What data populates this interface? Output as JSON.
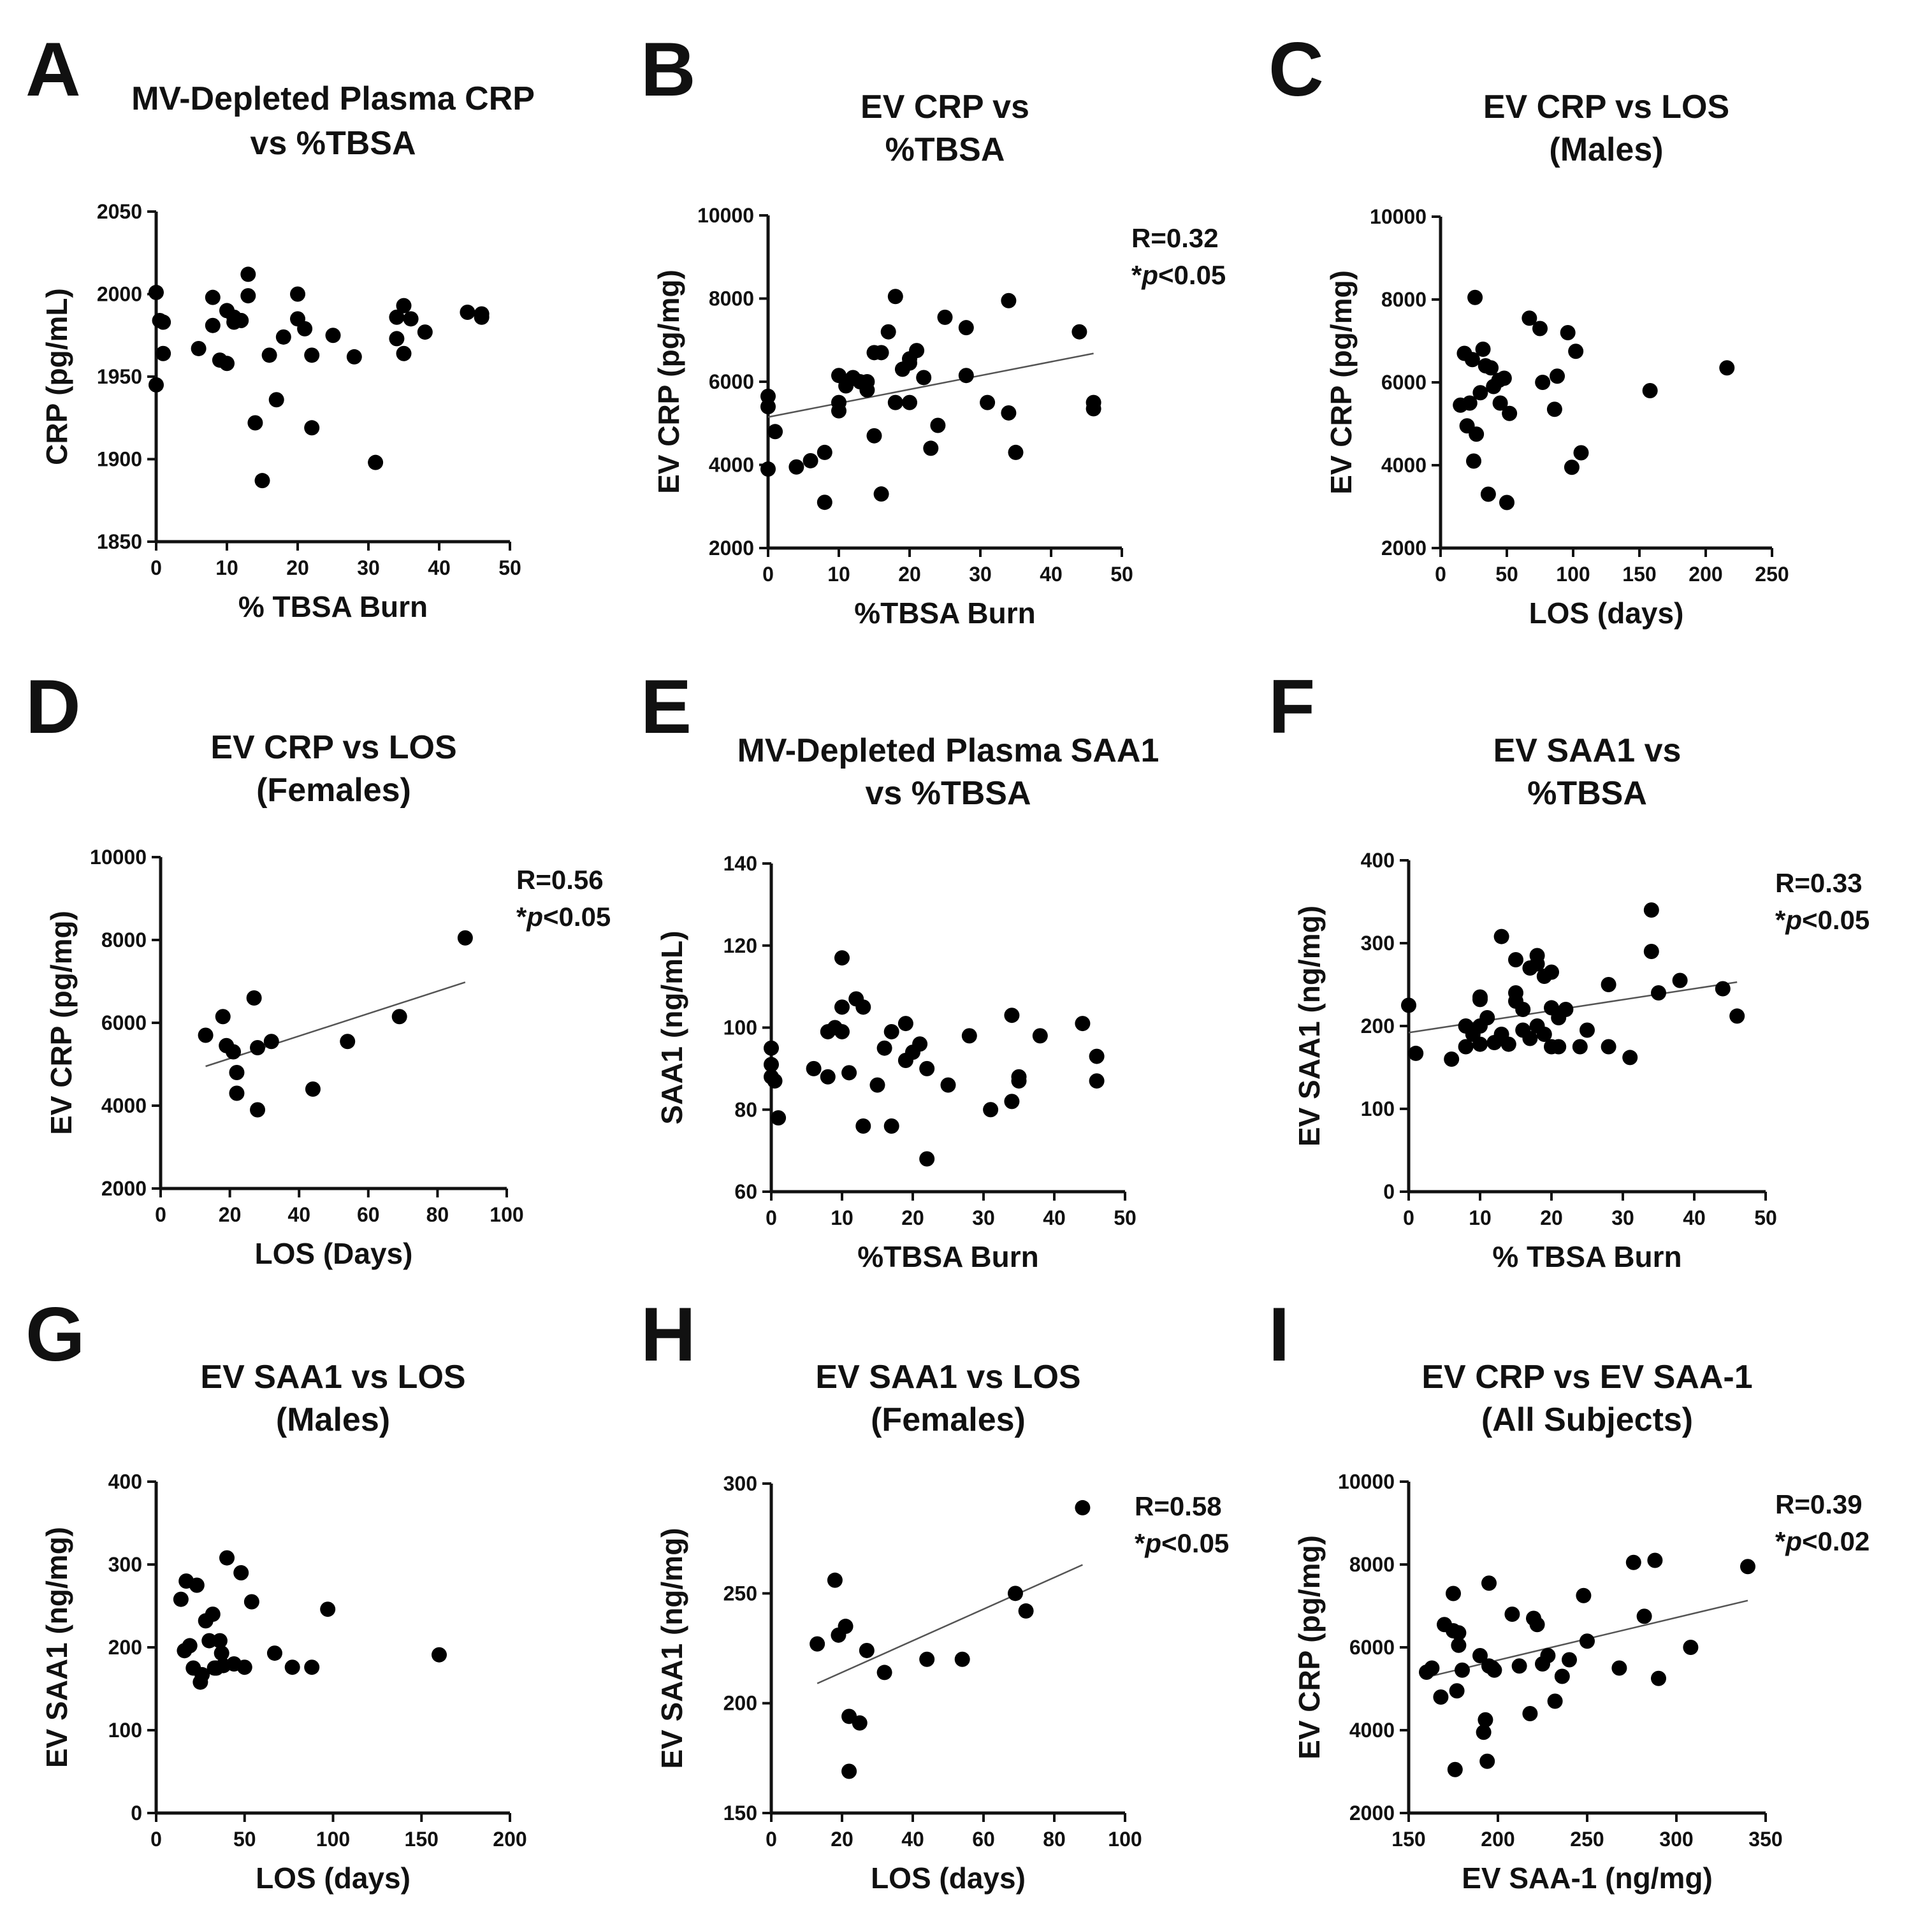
{
  "chart_data": [
    {
      "panel": "A",
      "type": "scatter",
      "title": [
        "MV-Depleted Plasma CRP",
        "vs %TBSA"
      ],
      "xlabel": "% TBSA Burn",
      "ylabel": "CRP (pg/mL)",
      "xlim": [
        0,
        50
      ],
      "ylim": [
        1850,
        2050
      ],
      "xticks": [
        "0",
        "10",
        "20",
        "30",
        "40",
        "50"
      ],
      "yticks": [
        "1850",
        "1900",
        "1950",
        "2000",
        "2050"
      ],
      "annotation": null,
      "x": [
        0,
        0,
        0.5,
        1,
        1,
        6,
        8,
        8,
        9,
        10,
        10,
        11,
        11,
        12,
        13,
        13,
        14,
        15,
        16,
        17,
        18,
        20,
        20,
        21,
        22,
        22,
        25,
        28,
        31,
        34,
        34,
        35,
        35,
        36,
        38,
        44,
        46,
        46
      ],
      "y": [
        2001,
        1945,
        1984,
        1983,
        1964,
        1967,
        1998,
        1981,
        1960,
        1990,
        1958,
        1986,
        1983,
        1984,
        2012,
        1999,
        1922,
        1887,
        1963,
        1936,
        1974,
        2000,
        1985,
        1979,
        1963,
        1919,
        1975,
        1962,
        1898,
        1986,
        1973,
        1993,
        1964,
        1985,
        1977,
        1989,
        1986,
        1988
      ],
      "fit": null
    },
    {
      "panel": "B",
      "type": "scatter",
      "title": [
        "EV CRP vs",
        "%TBSA"
      ],
      "xlabel": "%TBSA Burn",
      "ylabel": "EV CRP (pg/mg)",
      "xlim": [
        0,
        50
      ],
      "ylim": [
        2000,
        10000
      ],
      "xticks": [
        "0",
        "10",
        "20",
        "30",
        "40",
        "50"
      ],
      "yticks": [
        "2000",
        "4000",
        "6000",
        "8000",
        "10000"
      ],
      "annotation": {
        "r": "R=0.32",
        "p_prefix": "*",
        "p_italic": "p",
        "p_suffix": "<0.05"
      },
      "x": [
        0,
        0,
        0,
        1,
        4,
        6,
        8,
        8,
        10,
        10,
        10,
        11,
        12,
        13,
        14,
        14,
        15,
        15,
        16,
        16,
        17,
        18,
        18,
        19,
        20,
        20,
        20,
        21,
        22,
        23,
        24,
        25,
        28,
        28,
        31,
        34,
        34,
        35,
        44,
        46,
        46
      ],
      "y": [
        5650,
        5400,
        3900,
        4800,
        3950,
        4100,
        4300,
        3100,
        6150,
        5500,
        5300,
        5900,
        6100,
        6000,
        5800,
        6000,
        6700,
        4700,
        3300,
        6700,
        7200,
        8050,
        5500,
        6300,
        6550,
        6450,
        5500,
        6750,
        6100,
        4400,
        4950,
        7550,
        7300,
        6150,
        5500,
        7950,
        5250,
        4300,
        7200,
        5500,
        5350
      ],
      "fit": {
        "x": [
          0,
          46
        ],
        "y": [
          5150,
          6680
        ]
      }
    },
    {
      "panel": "C",
      "type": "scatter",
      "title": [
        "EV CRP vs LOS",
        "(Males)"
      ],
      "xlabel": "LOS  (days)",
      "ylabel": "EV CRP (pg/mg)",
      "xlim": [
        0,
        250
      ],
      "ylim": [
        2000,
        10000
      ],
      "xticks": [
        "0",
        "50",
        "100",
        "150",
        "200",
        "250"
      ],
      "yticks": [
        "2000",
        "4000",
        "6000",
        "8000",
        "10000"
      ],
      "annotation": null,
      "x": [
        15,
        18,
        20,
        22,
        24,
        25,
        26,
        27,
        30,
        32,
        34,
        36,
        38,
        40,
        44,
        45,
        48,
        50,
        52,
        67,
        75,
        77,
        86,
        88,
        96,
        99,
        102,
        106,
        158,
        216
      ],
      "y": [
        5450,
        6700,
        4950,
        5500,
        6550,
        4100,
        8050,
        4750,
        5750,
        6800,
        6400,
        3300,
        6350,
        5900,
        6050,
        5500,
        6100,
        3100,
        5250,
        7550,
        7300,
        6000,
        5350,
        6150,
        7200,
        3950,
        6750,
        4300,
        5800,
        6350
      ],
      "fit": null
    },
    {
      "panel": "D",
      "type": "scatter",
      "title": [
        "EV CRP vs LOS",
        "(Females)"
      ],
      "xlabel": "LOS  (Days)",
      "ylabel": "EV CRP (pg/mg)",
      "xlim": [
        0,
        100
      ],
      "ylim": [
        2000,
        10000
      ],
      "xticks": [
        "0",
        "20",
        "40",
        "60",
        "80",
        "100"
      ],
      "yticks": [
        "2000",
        "4000",
        "6000",
        "8000",
        "10000"
      ],
      "annotation": {
        "r": "R=0.56",
        "p_prefix": "*",
        "p_italic": "p",
        "p_suffix": "<0.05"
      },
      "x": [
        13,
        18,
        19,
        21,
        22,
        22,
        27,
        28,
        28,
        32,
        44,
        54,
        69,
        88
      ],
      "y": [
        5700,
        6150,
        5450,
        5300,
        4300,
        4800,
        6600,
        5400,
        3900,
        5550,
        4400,
        5550,
        6150,
        8050
      ],
      "fit": {
        "x": [
          13,
          88
        ],
        "y": [
          4950,
          6980
        ]
      }
    },
    {
      "panel": "E",
      "type": "scatter",
      "title": [
        "MV-Depleted Plasma SAA1",
        "vs %TBSA"
      ],
      "xlabel": "%TBSA Burn",
      "ylabel": "SAA1 (ng/mL)",
      "xlim": [
        0,
        50
      ],
      "ylim": [
        60,
        140
      ],
      "xticks": [
        "0",
        "10",
        "20",
        "30",
        "40",
        "50"
      ],
      "yticks": [
        "60",
        "80",
        "100",
        "120",
        "140"
      ],
      "annotation": null,
      "x": [
        0,
        0,
        0,
        0.5,
        1,
        6,
        8,
        8,
        9,
        10,
        10,
        10,
        11,
        12,
        13,
        13,
        15,
        16,
        17,
        17,
        19,
        19,
        20,
        21,
        22,
        22,
        25,
        28,
        31,
        34,
        34,
        35,
        35,
        38,
        44,
        46,
        46
      ],
      "y": [
        95,
        91,
        88,
        87,
        78,
        90,
        99,
        88,
        100,
        117,
        105,
        99,
        89,
        107,
        105,
        76,
        86,
        95,
        99,
        76,
        92,
        101,
        94,
        96,
        90,
        68,
        86,
        98,
        80,
        103,
        82,
        88,
        87,
        98,
        101,
        93,
        87
      ],
      "fit": null
    },
    {
      "panel": "F",
      "type": "scatter",
      "title": [
        "EV SAA1 vs",
        "%TBSA"
      ],
      "xlabel": "% TBSA Burn",
      "ylabel": "EV SAA1 (ng/mg)",
      "xlim": [
        0,
        50
      ],
      "ylim": [
        0,
        400
      ],
      "xticks": [
        "0",
        "10",
        "20",
        "30",
        "40",
        "50"
      ],
      "yticks": [
        "0",
        "100",
        "200",
        "300",
        "400"
      ],
      "annotation": {
        "r": "R=0.33",
        "p_prefix": "*",
        "p_italic": "p",
        "p_suffix": "<0.05"
      },
      "x": [
        0,
        1,
        6,
        8,
        8,
        9,
        10,
        10,
        10,
        10,
        11,
        12,
        13,
        13,
        14,
        15,
        15,
        15,
        16,
        16,
        17,
        17,
        18,
        18,
        18,
        19,
        19,
        20,
        20,
        20,
        21,
        21,
        22,
        24,
        25,
        28,
        28,
        31,
        34,
        34,
        35,
        38,
        44,
        46
      ],
      "y": [
        225,
        167,
        160,
        200,
        175,
        190,
        232,
        235,
        200,
        178,
        210,
        180,
        308,
        190,
        178,
        240,
        230,
        280,
        195,
        220,
        185,
        270,
        285,
        200,
        275,
        190,
        260,
        222,
        175,
        265,
        175,
        210,
        220,
        175,
        195,
        250,
        175,
        162,
        340,
        290,
        240,
        255,
        245,
        212
      ],
      "fit": {
        "x": [
          0,
          46
        ],
        "y": [
          192,
          253
        ]
      }
    },
    {
      "panel": "G",
      "type": "scatter",
      "title": [
        "EV SAA1 vs LOS",
        "(Males)"
      ],
      "xlabel": "LOS (days)",
      "ylabel": "EV SAA1 (ng/mg)",
      "xlim": [
        0,
        200
      ],
      "ylim": [
        0,
        400
      ],
      "xticks": [
        "0",
        "50",
        "100",
        "150",
        "200"
      ],
      "yticks": [
        "0",
        "100",
        "200",
        "300",
        "400"
      ],
      "annotation": null,
      "x": [
        14,
        16,
        17,
        19,
        21,
        23,
        25,
        26,
        28,
        30,
        32,
        33,
        34,
        36,
        37,
        38,
        40,
        44,
        48,
        50,
        54,
        67,
        77,
        88,
        97,
        160
      ],
      "y": [
        258,
        196,
        280,
        202,
        175,
        275,
        158,
        167,
        232,
        208,
        240,
        175,
        175,
        208,
        193,
        178,
        308,
        180,
        290,
        176,
        255,
        193,
        176,
        176,
        246,
        191
      ],
      "fit": null
    },
    {
      "panel": "H",
      "type": "scatter",
      "title": [
        "EV SAA1 vs LOS",
        "(Females)"
      ],
      "xlabel": "LOS  (days)",
      "ylabel": "EV SAA1 (ng/mg)",
      "xlim": [
        0,
        100
      ],
      "ylim": [
        150,
        300
      ],
      "xticks": [
        "0",
        "20",
        "40",
        "60",
        "80",
        "100"
      ],
      "yticks": [
        "150",
        "200",
        "250",
        "300"
      ],
      "annotation": {
        "r": "R=0.58",
        "p_prefix": "*",
        "p_italic": "p",
        "p_suffix": "<0.05"
      },
      "x": [
        13,
        18,
        19,
        21,
        22,
        22,
        25,
        27,
        32,
        44,
        54,
        69,
        72,
        88
      ],
      "y": [
        227,
        256,
        231,
        235,
        194,
        169,
        191,
        224,
        214,
        220,
        220,
        250,
        242,
        289
      ],
      "fit": {
        "x": [
          13,
          88
        ],
        "y": [
          209,
          263
        ]
      }
    },
    {
      "panel": "I",
      "type": "scatter",
      "title": [
        "EV CRP vs EV SAA-1",
        "(All Subjects)"
      ],
      "xlabel": "EV SAA-1 (ng/mg)",
      "ylabel": "EV CRP (pg/mg)",
      "xlim": [
        150,
        350
      ],
      "ylim": [
        2000,
        10000
      ],
      "xticks": [
        "150",
        "200",
        "250",
        "300",
        "350"
      ],
      "yticks": [
        "2000",
        "4000",
        "6000",
        "8000",
        "10000"
      ],
      "annotation": {
        "r": "R=0.39",
        "p_prefix": "*",
        "p_italic": "p",
        "p_suffix": "<0.02"
      },
      "x": [
        160,
        163,
        168,
        170,
        175,
        175,
        176,
        177,
        178,
        178,
        180,
        190,
        192,
        193,
        194,
        195,
        195,
        197,
        198,
        208,
        212,
        218,
        220,
        222,
        225,
        228,
        232,
        236,
        240,
        248,
        250,
        268,
        276,
        282,
        288,
        290,
        308,
        340
      ],
      "y": [
        5400,
        5500,
        4800,
        6550,
        7300,
        6400,
        3050,
        4950,
        6350,
        6050,
        5450,
        5800,
        3950,
        4250,
        3250,
        7550,
        5550,
        5500,
        5450,
        6800,
        5550,
        4400,
        6700,
        6550,
        5600,
        5800,
        4700,
        5300,
        5700,
        7250,
        6150,
        5500,
        8050,
        6750,
        8100,
        5250,
        6000,
        7950
      ],
      "fit": {
        "x": [
          160,
          340
        ],
        "y": [
          5280,
          7130
        ]
      }
    }
  ]
}
